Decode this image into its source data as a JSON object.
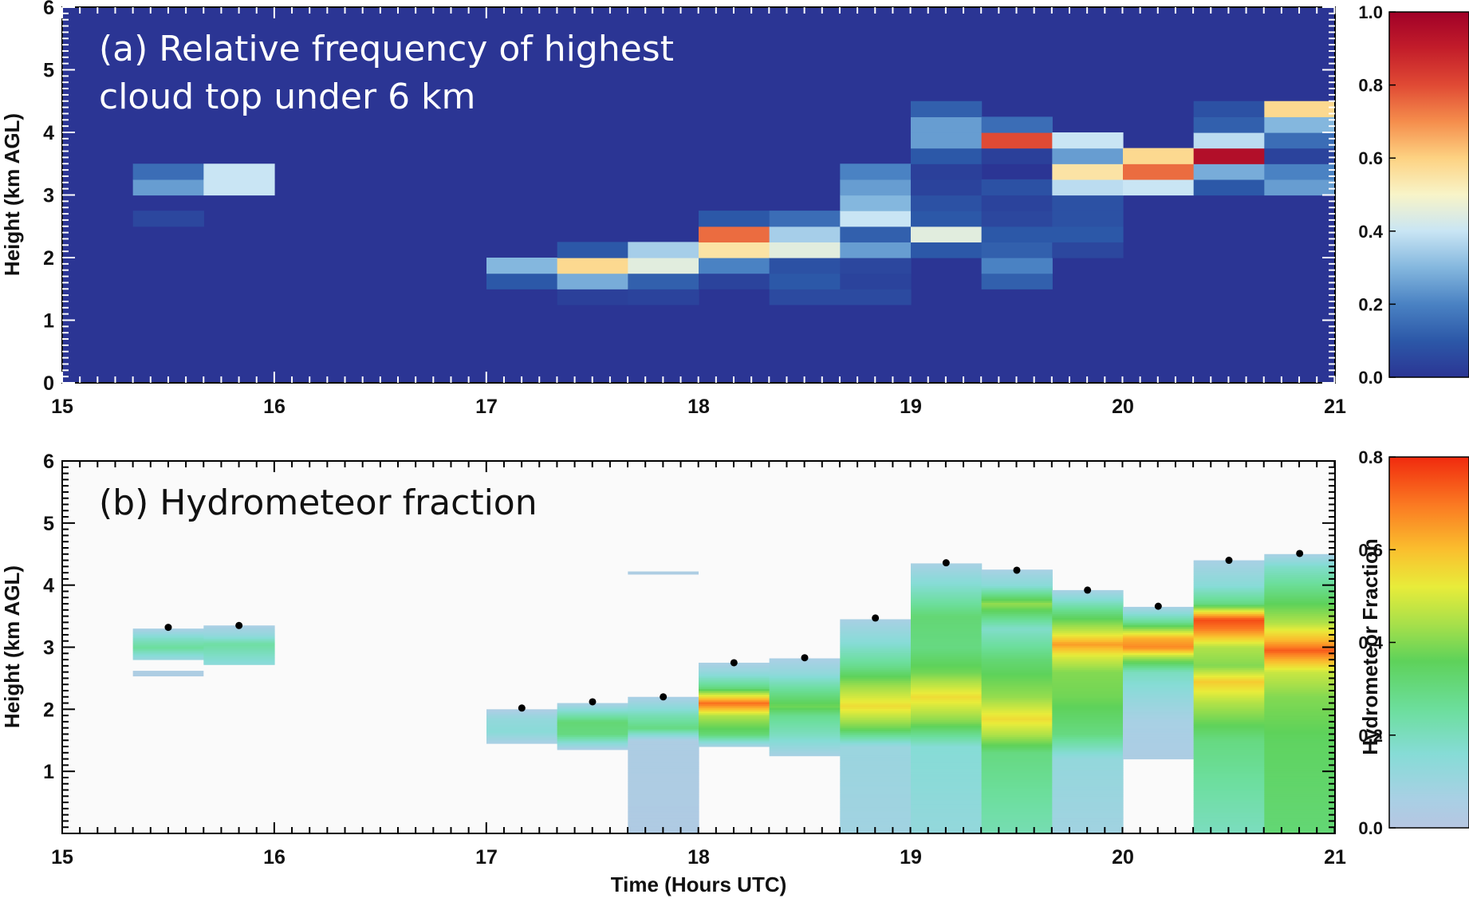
{
  "chart_data": [
    {
      "type": "heatmap",
      "panel": "a",
      "title_lines": [
        "(a) Relative frequency of highest",
        "cloud top under 6 km"
      ],
      "xlabel": "",
      "ylabel": "Height (km AGL)",
      "xlim": [
        15,
        21
      ],
      "ylim": [
        0,
        6
      ],
      "xticks": [
        "15",
        "16",
        "17",
        "18",
        "19",
        "20",
        "21"
      ],
      "yticks": [
        "0",
        "1",
        "2",
        "3",
        "4",
        "5",
        "6"
      ],
      "colorbar": {
        "range": [
          0.0,
          1.0
        ],
        "ticks": [
          "0.0",
          "0.2",
          "0.4",
          "0.6",
          "0.8",
          "1.0"
        ],
        "label": ""
      },
      "background_value": 0.0,
      "bin_width_hours": 0.3333,
      "bin_height_km": 0.25,
      "columns": [
        {
          "x_start": 15.3333,
          "cells": [
            [
              2.5,
              0.05
            ],
            [
              3.0,
              0.25
            ],
            [
              3.25,
              0.15
            ]
          ]
        },
        {
          "x_start": 15.6667,
          "cells": [
            [
              3.0,
              0.4
            ],
            [
              3.25,
              0.4
            ]
          ]
        },
        {
          "x_start": 17.0,
          "cells": [
            [
              1.5,
              0.1
            ],
            [
              1.75,
              0.3
            ]
          ]
        },
        {
          "x_start": 17.3333,
          "cells": [
            [
              1.25,
              0.03
            ],
            [
              1.5,
              0.28
            ],
            [
              1.75,
              0.58
            ],
            [
              2.0,
              0.1
            ]
          ]
        },
        {
          "x_start": 17.6667,
          "cells": [
            [
              1.25,
              0.04
            ],
            [
              1.5,
              0.12
            ],
            [
              1.75,
              0.45
            ],
            [
              2.0,
              0.35
            ]
          ]
        },
        {
          "x_start": 18.0,
          "cells": [
            [
              1.5,
              0.04
            ],
            [
              1.75,
              0.2
            ],
            [
              2.0,
              0.55
            ],
            [
              2.25,
              0.75
            ],
            [
              2.5,
              0.1
            ]
          ]
        },
        {
          "x_start": 18.3333,
          "cells": [
            [
              1.25,
              0.06
            ],
            [
              1.5,
              0.1
            ],
            [
              1.75,
              0.08
            ],
            [
              2.0,
              0.45
            ],
            [
              2.25,
              0.35
            ],
            [
              2.5,
              0.15
            ]
          ]
        },
        {
          "x_start": 18.6667,
          "cells": [
            [
              1.25,
              0.06
            ],
            [
              1.5,
              0.04
            ],
            [
              1.75,
              0.05
            ],
            [
              2.0,
              0.25
            ],
            [
              2.25,
              0.12
            ],
            [
              2.5,
              0.4
            ],
            [
              2.75,
              0.3
            ],
            [
              3.0,
              0.25
            ],
            [
              3.25,
              0.2
            ]
          ]
        },
        {
          "x_start": 19.0,
          "cells": [
            [
              2.0,
              0.1
            ],
            [
              2.25,
              0.45
            ],
            [
              2.5,
              0.1
            ],
            [
              2.75,
              0.08
            ],
            [
              3.0,
              0.04
            ],
            [
              3.25,
              0.03
            ],
            [
              3.5,
              0.1
            ],
            [
              3.75,
              0.25
            ],
            [
              4.0,
              0.25
            ],
            [
              4.25,
              0.12
            ]
          ]
        },
        {
          "x_start": 19.3333,
          "cells": [
            [
              1.5,
              0.12
            ],
            [
              1.75,
              0.2
            ],
            [
              2.0,
              0.12
            ],
            [
              2.25,
              0.1
            ],
            [
              2.5,
              0.05
            ],
            [
              2.75,
              0.04
            ],
            [
              3.0,
              0.08
            ],
            [
              3.5,
              0.03
            ],
            [
              3.75,
              0.8
            ],
            [
              4.0,
              0.15
            ]
          ]
        },
        {
          "x_start": 19.6667,
          "cells": [
            [
              2.0,
              0.05
            ],
            [
              2.25,
              0.1
            ],
            [
              2.5,
              0.08
            ],
            [
              2.75,
              0.08
            ],
            [
              3.0,
              0.38
            ],
            [
              3.25,
              0.55
            ],
            [
              3.5,
              0.25
            ],
            [
              3.75,
              0.4
            ]
          ]
        },
        {
          "x_start": 20.0,
          "cells": [
            [
              3.0,
              0.4
            ],
            [
              3.25,
              0.75
            ],
            [
              3.5,
              0.58
            ]
          ]
        },
        {
          "x_start": 20.3333,
          "cells": [
            [
              3.0,
              0.1
            ],
            [
              3.25,
              0.28
            ],
            [
              3.5,
              0.95
            ],
            [
              3.75,
              0.38
            ],
            [
              4.0,
              0.12
            ],
            [
              4.25,
              0.08
            ]
          ]
        },
        {
          "x_start": 20.6667,
          "cells": [
            [
              3.0,
              0.25
            ],
            [
              3.25,
              0.2
            ],
            [
              3.5,
              0.04
            ],
            [
              3.75,
              0.15
            ],
            [
              4.0,
              0.3
            ],
            [
              4.25,
              0.58
            ]
          ]
        }
      ]
    },
    {
      "type": "heatmap",
      "panel": "b",
      "title_lines": [
        "(b) Hydrometeor fraction"
      ],
      "xlabel": "Time (Hours UTC)",
      "ylabel": "Height (km AGL)",
      "xlim": [
        15,
        21
      ],
      "ylim": [
        0,
        6
      ],
      "xticks": [
        "15",
        "16",
        "17",
        "18",
        "19",
        "20",
        "21"
      ],
      "yticks": [
        "1",
        "2",
        "3",
        "4",
        "5",
        "6"
      ],
      "colorbar": {
        "range": [
          0.0,
          0.8
        ],
        "ticks": [
          "0.0",
          "0.2",
          "0.4",
          "0.6",
          "0.8"
        ],
        "label": "Hydrometeor Fraction"
      },
      "bin_width_hours": 0.3333,
      "columns": [
        {
          "x_start": 15.3333,
          "bottom": 2.8,
          "top": 3.3,
          "profile": [
            [
              2.8,
              0.1
            ],
            [
              3.0,
              0.26
            ],
            [
              3.15,
              0.18
            ],
            [
              3.3,
              0.05
            ]
          ],
          "extra_bands": [
            [
              2.53,
              2.62,
              0.04
            ]
          ],
          "dot_height": 3.32
        },
        {
          "x_start": 15.6667,
          "bottom": 2.72,
          "top": 3.35,
          "profile": [
            [
              2.72,
              0.14
            ],
            [
              3.05,
              0.25
            ],
            [
              3.2,
              0.12
            ],
            [
              3.35,
              0.05
            ]
          ],
          "dot_height": 3.35
        },
        {
          "x_start": 17.0,
          "bottom": 1.45,
          "top": 2.0,
          "profile": [
            [
              1.45,
              0.05
            ],
            [
              1.65,
              0.15
            ],
            [
              1.85,
              0.12
            ],
            [
              2.0,
              0.04
            ]
          ],
          "dot_height": 2.02
        },
        {
          "x_start": 17.3333,
          "bottom": 1.35,
          "top": 2.1,
          "profile": [
            [
              1.35,
              0.04
            ],
            [
              1.6,
              0.3
            ],
            [
              1.8,
              0.32
            ],
            [
              2.0,
              0.15
            ],
            [
              2.1,
              0.05
            ]
          ],
          "dot_height": 2.12
        },
        {
          "x_start": 17.6667,
          "bottom": 0.0,
          "top": 2.2,
          "profile": [
            [
              0.0,
              0.03
            ],
            [
              1.5,
              0.04
            ],
            [
              1.7,
              0.3
            ],
            [
              1.9,
              0.22
            ],
            [
              2.1,
              0.1
            ],
            [
              2.2,
              0.05
            ]
          ],
          "extra_bands": [
            [
              4.17,
              4.22,
              0.04
            ]
          ],
          "dot_height": 2.2
        },
        {
          "x_start": 18.0,
          "bottom": 1.4,
          "top": 2.75,
          "profile": [
            [
              1.4,
              0.06
            ],
            [
              1.6,
              0.32
            ],
            [
              1.9,
              0.45
            ],
            [
              2.1,
              0.72
            ],
            [
              2.35,
              0.3
            ],
            [
              2.6,
              0.12
            ],
            [
              2.75,
              0.05
            ]
          ],
          "dot_height": 2.75
        },
        {
          "x_start": 18.3333,
          "bottom": 1.25,
          "top": 2.82,
          "profile": [
            [
              1.25,
              0.06
            ],
            [
              1.6,
              0.2
            ],
            [
              1.9,
              0.28
            ],
            [
              2.05,
              0.38
            ],
            [
              2.35,
              0.25
            ],
            [
              2.6,
              0.12
            ],
            [
              2.82,
              0.05
            ]
          ],
          "dot_height": 2.83
        },
        {
          "x_start": 18.6667,
          "bottom": 0.0,
          "top": 3.45,
          "profile": [
            [
              0.0,
              0.08
            ],
            [
              1.4,
              0.1
            ],
            [
              1.7,
              0.38
            ],
            [
              2.05,
              0.55
            ],
            [
              2.4,
              0.42
            ],
            [
              2.7,
              0.28
            ],
            [
              3.1,
              0.15
            ],
            [
              3.45,
              0.06
            ]
          ],
          "dot_height": 3.47
        },
        {
          "x_start": 19.0,
          "bottom": 0.0,
          "top": 4.35,
          "profile": [
            [
              0.0,
              0.12
            ],
            [
              1.4,
              0.16
            ],
            [
              1.8,
              0.4
            ],
            [
              2.2,
              0.55
            ],
            [
              2.6,
              0.38
            ],
            [
              3.0,
              0.3
            ],
            [
              3.5,
              0.32
            ],
            [
              3.9,
              0.2
            ],
            [
              4.35,
              0.06
            ]
          ],
          "dot_height": 4.36
        },
        {
          "x_start": 19.3333,
          "bottom": 0.0,
          "top": 4.25,
          "profile": [
            [
              0.0,
              0.22
            ],
            [
              1.3,
              0.3
            ],
            [
              1.6,
              0.45
            ],
            [
              1.85,
              0.55
            ],
            [
              2.2,
              0.42
            ],
            [
              2.8,
              0.32
            ],
            [
              3.3,
              0.18
            ],
            [
              3.7,
              0.42
            ],
            [
              4.0,
              0.15
            ],
            [
              4.25,
              0.06
            ]
          ],
          "dot_height": 4.24
        },
        {
          "x_start": 19.6667,
          "bottom": 0.0,
          "top": 3.92,
          "profile": [
            [
              0.0,
              0.08
            ],
            [
              1.2,
              0.12
            ],
            [
              1.6,
              0.3
            ],
            [
              2.2,
              0.38
            ],
            [
              2.6,
              0.4
            ],
            [
              2.85,
              0.5
            ],
            [
              3.05,
              0.65
            ],
            [
              3.25,
              0.48
            ],
            [
              3.6,
              0.28
            ],
            [
              3.92,
              0.06
            ]
          ],
          "dot_height": 3.92
        },
        {
          "x_start": 20.0,
          "bottom": 1.2,
          "top": 3.65,
          "profile": [
            [
              1.2,
              0.04
            ],
            [
              1.8,
              0.06
            ],
            [
              2.2,
              0.12
            ],
            [
              2.6,
              0.2
            ],
            [
              2.85,
              0.45
            ],
            [
              3.0,
              0.68
            ],
            [
              3.15,
              0.62
            ],
            [
              3.4,
              0.28
            ],
            [
              3.65,
              0.06
            ]
          ],
          "dot_height": 3.66
        },
        {
          "x_start": 20.3333,
          "bottom": 0.0,
          "top": 4.4,
          "profile": [
            [
              0.0,
              0.2
            ],
            [
              1.5,
              0.3
            ],
            [
              2.1,
              0.45
            ],
            [
              2.45,
              0.58
            ],
            [
              2.7,
              0.4
            ],
            [
              3.0,
              0.45
            ],
            [
              3.3,
              0.7
            ],
            [
              3.45,
              0.76
            ],
            [
              3.7,
              0.3
            ],
            [
              4.0,
              0.15
            ],
            [
              4.4,
              0.06
            ]
          ],
          "dot_height": 4.4
        },
        {
          "x_start": 20.6667,
          "bottom": 0.0,
          "top": 4.5,
          "profile": [
            [
              0.0,
              0.32
            ],
            [
              1.5,
              0.35
            ],
            [
              2.2,
              0.4
            ],
            [
              2.6,
              0.48
            ],
            [
              2.8,
              0.62
            ],
            [
              2.95,
              0.74
            ],
            [
              3.1,
              0.62
            ],
            [
              3.4,
              0.45
            ],
            [
              3.9,
              0.3
            ],
            [
              4.3,
              0.18
            ],
            [
              4.5,
              0.06
            ]
          ],
          "dot_height": 4.51
        }
      ]
    }
  ]
}
